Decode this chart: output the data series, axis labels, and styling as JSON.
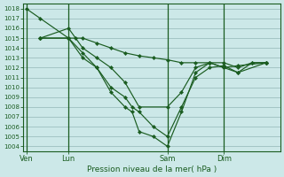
{
  "background_color": "#cce8e8",
  "grid_color": "#9dbfbf",
  "line_color": "#1a5c20",
  "xlabel": "Pression niveau de la mer( hPa )",
  "ylim": [
    1003.5,
    1018.5
  ],
  "yticks": [
    1004,
    1005,
    1006,
    1007,
    1008,
    1009,
    1010,
    1011,
    1012,
    1013,
    1014,
    1015,
    1016,
    1017,
    1018
  ],
  "xtick_labels": [
    "Ven",
    "Lun",
    "Sam",
    "Dim"
  ],
  "xtick_positions": [
    0,
    3,
    10,
    14
  ],
  "vline_positions": [
    0,
    3,
    10,
    14
  ],
  "xlim": [
    -0.2,
    18
  ],
  "series": [
    {
      "x": [
        0,
        1,
        3,
        4,
        5,
        6,
        7,
        8,
        9,
        10,
        11,
        12,
        13,
        14,
        15,
        16,
        17
      ],
      "y": [
        1018,
        1017,
        1015,
        1015,
        1014.5,
        1014,
        1013.5,
        1013.2,
        1013,
        1012.8,
        1012.5,
        1012.5,
        1012.5,
        1012.5,
        1012,
        1012.5,
        1012.5
      ]
    },
    {
      "x": [
        1,
        3,
        3.5,
        4,
        5,
        6,
        7,
        8,
        10,
        11,
        12,
        13,
        14,
        15,
        16,
        17
      ],
      "y": [
        1015,
        1016,
        1015,
        1014,
        1013,
        1012,
        1010.5,
        1008,
        1008,
        1009.5,
        1012,
        1012.5,
        1012,
        1011.5,
        1012.5,
        1012.5
      ]
    },
    {
      "x": [
        1,
        3,
        4,
        5,
        6,
        7,
        7.5,
        8,
        9,
        10,
        11,
        12,
        13,
        14,
        15,
        17
      ],
      "y": [
        1015,
        1015,
        1013.5,
        1012,
        1010,
        1009,
        1008,
        1007.5,
        1006,
        1005,
        1008,
        1011,
        1012,
        1012.2,
        1011.5,
        1012.5
      ]
    },
    {
      "x": [
        1,
        3,
        4,
        5,
        6,
        7,
        7.5,
        8,
        9,
        10,
        11,
        12,
        13,
        14,
        15,
        17
      ],
      "y": [
        1015,
        1015,
        1013,
        1012,
        1009.5,
        1008,
        1007.5,
        1005.5,
        1005,
        1004,
        1007.5,
        1011.5,
        1012.5,
        1012,
        1012.2,
        1012.5
      ]
    }
  ]
}
